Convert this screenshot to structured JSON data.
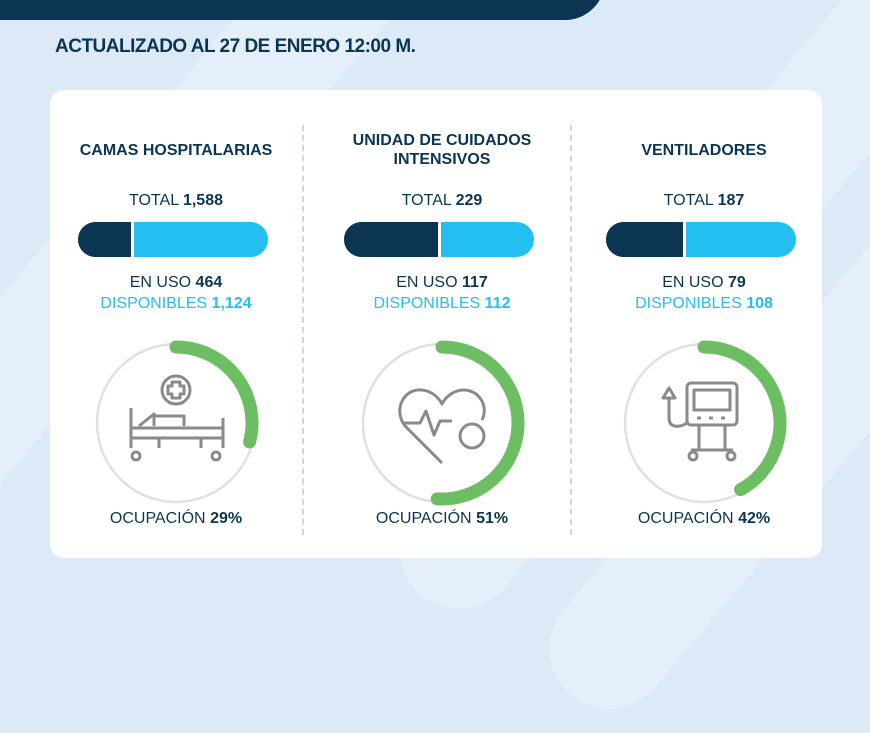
{
  "header": {
    "updated": "ACTUALIZADO AL 27 DE ENERO  12:00 M."
  },
  "colors": {
    "dark": "#0b3552",
    "available": "#22bff0",
    "occupancy": "#6dbd63",
    "track": "#e0e0e0"
  },
  "columns": [
    {
      "title": "CAMAS HOSPITALARIAS",
      "total_label": "TOTAL",
      "total": "1,588",
      "in_use_label": "EN USO",
      "in_use": "464",
      "available_label": "DISPONIBLES",
      "available": "1,124",
      "occupancy_label": "OCUPACIÓN",
      "occupancy": "29%",
      "occupancy_value": 29,
      "icon": "hospital-bed-icon"
    },
    {
      "title": "UNIDAD DE CUIDADOS INTENSIVOS",
      "total_label": "TOTAL",
      "total": "229",
      "in_use_label": "EN USO",
      "in_use": "117",
      "available_label": "DISPONIBLES",
      "available": "112",
      "occupancy_label": "OCUPACIÓN",
      "occupancy": "51%",
      "occupancy_value": 51,
      "icon": "heart-pulse-icon"
    },
    {
      "title": "VENTILADORES",
      "total_label": "TOTAL",
      "total": "187",
      "in_use_label": "EN USO",
      "in_use": "79",
      "available_label": "DISPONIBLES",
      "available": "108",
      "occupancy_label": "OCUPACIÓN",
      "occupancy": "42%",
      "occupancy_value": 42,
      "icon": "ventilator-icon"
    }
  ]
}
